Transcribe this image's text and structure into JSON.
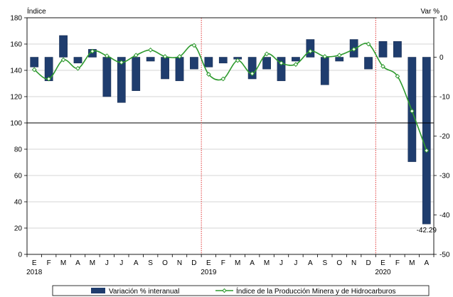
{
  "chart_data": {
    "type": "bar",
    "categories": [
      "E",
      "F",
      "M",
      "A",
      "M",
      "J",
      "J",
      "A",
      "S",
      "O",
      "N",
      "D",
      "E",
      "F",
      "M",
      "A",
      "M",
      "J",
      "J",
      "A",
      "S",
      "O",
      "N",
      "D",
      "E",
      "F",
      "M",
      "A"
    ],
    "year_labels": [
      {
        "index": 0,
        "label": "2018"
      },
      {
        "index": 12,
        "label": "2019"
      },
      {
        "index": 24,
        "label": "2020"
      }
    ],
    "ylabel_left": "Índice",
    "ylabel_right": "Var %",
    "ylim_left": [
      0,
      180
    ],
    "yticks_left": [
      0,
      20,
      40,
      60,
      80,
      100,
      120,
      140,
      160,
      180
    ],
    "ylim_right": [
      -50,
      10
    ],
    "yticks_right": [
      -50,
      -40,
      -30,
      -20,
      -10,
      0,
      10
    ],
    "series": [
      {
        "name": "Variación % interanual",
        "type": "bar",
        "axis": "right",
        "color": "#1f3d6e",
        "values": [
          -2.5,
          -6.0,
          5.5,
          -1.5,
          2.0,
          -10.0,
          -11.5,
          -8.5,
          -1.0,
          -5.5,
          -6.0,
          -3.0,
          -2.5,
          -1.5,
          -0.5,
          -5.5,
          -3.0,
          -6.0,
          -1.0,
          4.5,
          -7.0,
          -1.0,
          4.5,
          -3.0,
          4.0,
          4.0,
          -26.5,
          -42.29
        ]
      },
      {
        "name": "Índice de la Producción Minera y de Hidrocarburos",
        "type": "line",
        "axis": "left",
        "color": "#2e9a2e",
        "values": [
          140.5,
          133.5,
          148,
          141.5,
          154.5,
          151,
          146,
          151.5,
          155.5,
          150.5,
          150.5,
          159,
          137,
          133.5,
          147.5,
          137.5,
          152.5,
          145.5,
          144.5,
          154.5,
          150.5,
          151.5,
          156,
          160,
          143,
          135.5,
          109,
          79
        ]
      }
    ],
    "data_labels": [
      {
        "series": 0,
        "index": 27,
        "text": "-42.29"
      }
    ],
    "reference_lines": [
      {
        "axis": "left",
        "value": 100,
        "style": "solid"
      }
    ],
    "dividers_after_index": [
      11,
      23
    ],
    "grid": "horizontal",
    "legend_position": "bottom"
  }
}
